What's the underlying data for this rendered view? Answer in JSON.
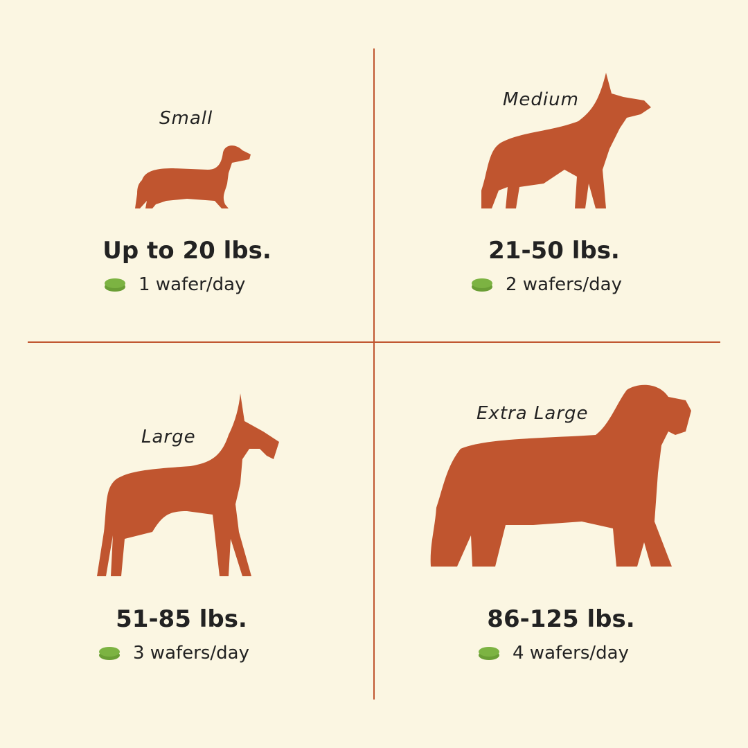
{
  "colors": {
    "background": "#fbf6e2",
    "accent": "#c0552f",
    "wafer": "#7cb342",
    "text": "#222222"
  },
  "sizes": [
    {
      "label": "Small",
      "weight": "Up to 20 lbs.",
      "dose": "1 wafer/day",
      "icon": "dachshund-icon"
    },
    {
      "label": "Medium",
      "weight": "21-50 lbs.",
      "dose": "2 wafers/day",
      "icon": "shepherd-dog-icon"
    },
    {
      "label": "Large",
      "weight": "51-85 lbs.",
      "dose": "3 wafers/day",
      "icon": "great-dane-icon"
    },
    {
      "label": "Extra Large",
      "weight": "86-125 lbs.",
      "dose": "4 wafers/day",
      "icon": "fluffy-dog-icon"
    }
  ]
}
